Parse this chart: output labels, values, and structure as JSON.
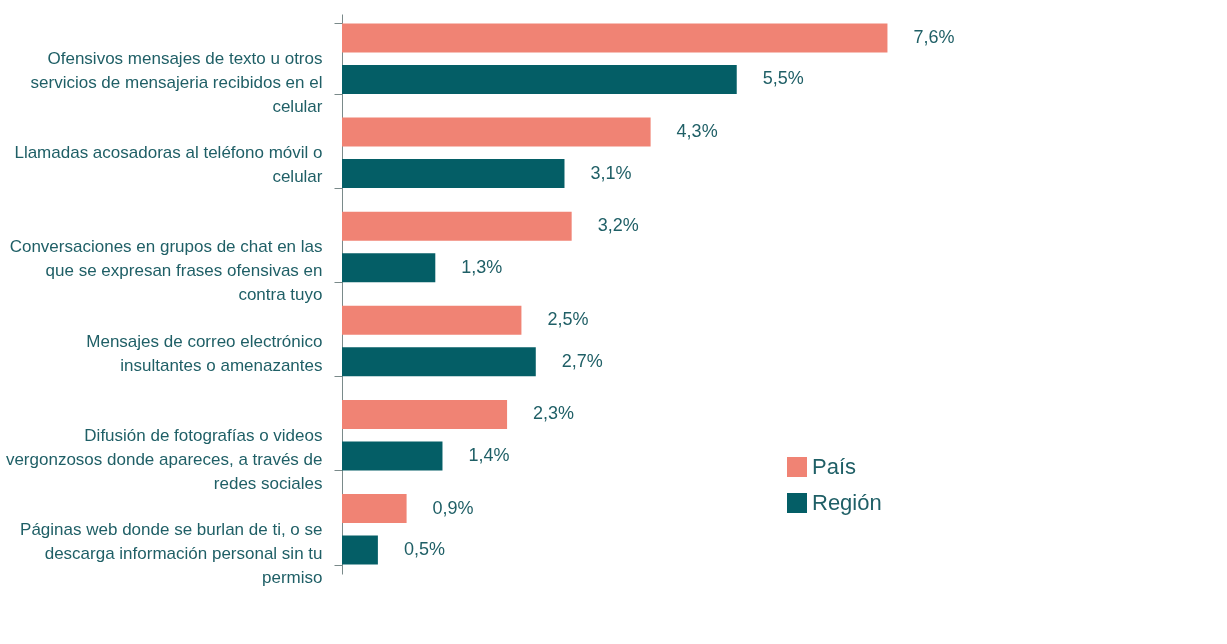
{
  "chart_data": {
    "type": "bar",
    "orientation": "horizontal",
    "legend": "bottom right",
    "categories": [
      "Ofensivos mensajes de texto u otros servicios de mensajeria recibidos en el celular",
      "Llamadas acosadoras al teléfono móvil o celular",
      "Conversaciones en grupos de chat en las que se expresan frases ofensivas en contra tuyo",
      "Mensajes de correo electrónico insultantes o amenazantes",
      "Difusión de fotografías o videos vergonzosos donde apareces, a través de redes sociales",
      "Páginas web donde se burlan de ti, o se descarga información personal sin tu permiso"
    ],
    "series": [
      {
        "name": "País",
        "color": "#f08374",
        "values": [
          7.6,
          4.3,
          3.2,
          2.5,
          2.3,
          0.9
        ],
        "value_labels": [
          "7,6%",
          "4,3%",
          "3,2%",
          "2,5%",
          "2,3%",
          "0,9%"
        ]
      },
      {
        "name": "Región",
        "color": "#045e66",
        "values": [
          5.5,
          3.1,
          1.3,
          2.7,
          1.4,
          0.5
        ],
        "value_labels": [
          "5,5%",
          "3,1%",
          "1,3%",
          "2,7%",
          "1,4%",
          "0,5%"
        ]
      }
    ]
  }
}
